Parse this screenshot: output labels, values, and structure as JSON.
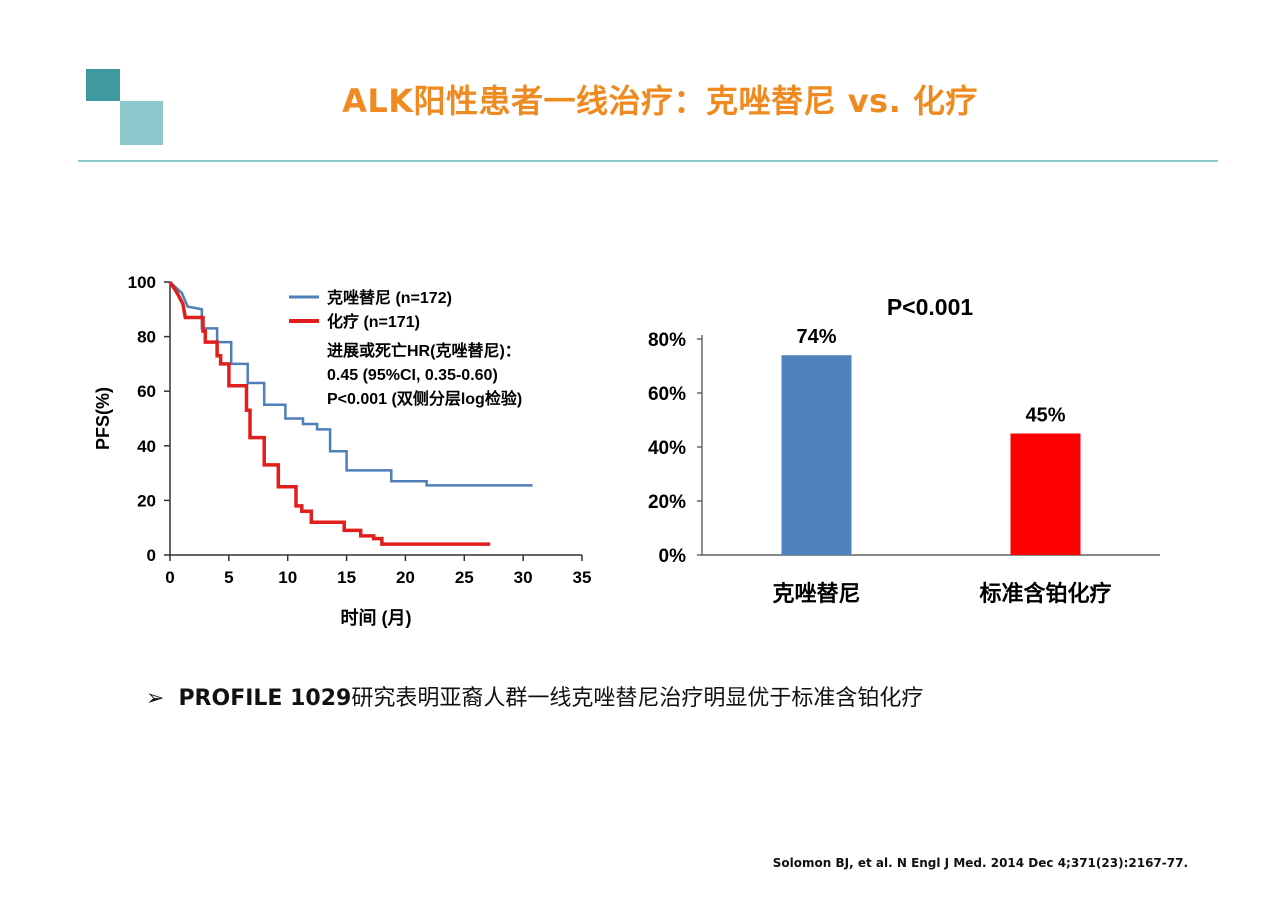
{
  "page": {
    "title": "ALK阳性患者一线治疗：克唑替尼 vs. 化疗",
    "bullet_mark": "➢",
    "bullet_lead": "PROFILE 1029",
    "bullet_rest": "研究表明亚裔人群一线克唑替尼治疗明显优于标准含铂化疗",
    "citation": "Solomon BJ, et al. N Engl J Med. 2014 Dec 4;371(23):2167-77."
  },
  "colors": {
    "title": "#ee8a1f",
    "accent_dark": "#3f9aa0",
    "accent_light": "#8dc8cc",
    "rule": "#8cc9cd",
    "crizotinib": "#4f7fb8",
    "chemo": "#e01e1e",
    "bar_blue": "#4f81bd",
    "bar_red": "#ff0000"
  },
  "chart_data": [
    {
      "type": "line",
      "xlabel": "时间 (月)",
      "ylabel": "PFS(%)",
      "xlim": [
        0,
        35
      ],
      "ylim": [
        0,
        100
      ],
      "xticks": [
        0,
        5,
        10,
        15,
        20,
        25,
        30,
        35
      ],
      "yticks": [
        0,
        20,
        40,
        60,
        80,
        100
      ],
      "grid": false,
      "legend_position": "top-right",
      "series": [
        {
          "name": "克唑替尼 (n=172)",
          "color": "#4f7fb8",
          "step": true,
          "points": [
            [
              0,
              100
            ],
            [
              0.5,
              98
            ],
            [
              1,
              96
            ],
            [
              1.5,
              91
            ],
            [
              2.7,
              90
            ],
            [
              2.7,
              83
            ],
            [
              4,
              83
            ],
            [
              4,
              78
            ],
            [
              5.2,
              78
            ],
            [
              5.2,
              70
            ],
            [
              6.6,
              70
            ],
            [
              6.6,
              63
            ],
            [
              8,
              63
            ],
            [
              8,
              55
            ],
            [
              9.8,
              55
            ],
            [
              9.8,
              50
            ],
            [
              11.3,
              50
            ],
            [
              11.3,
              48
            ],
            [
              12.5,
              48
            ],
            [
              12.5,
              46
            ],
            [
              13.6,
              46
            ],
            [
              13.6,
              38
            ],
            [
              15,
              38
            ],
            [
              15,
              31
            ],
            [
              18.8,
              31
            ],
            [
              18.8,
              27
            ],
            [
              21.8,
              27
            ],
            [
              21.8,
              25.5
            ],
            [
              30.8,
              25.5
            ]
          ]
        },
        {
          "name": "化疗 (n=171)",
          "color": "#e01e1e",
          "step": true,
          "points": [
            [
              0,
              100
            ],
            [
              0.6,
              96
            ],
            [
              1.1,
              92
            ],
            [
              1.3,
              87
            ],
            [
              2.8,
              87
            ],
            [
              2.8,
              82
            ],
            [
              3,
              82
            ],
            [
              3,
              78
            ],
            [
              4,
              78
            ],
            [
              4,
              73
            ],
            [
              4.3,
              73
            ],
            [
              4.3,
              70
            ],
            [
              5,
              70
            ],
            [
              5,
              62
            ],
            [
              6.5,
              62
            ],
            [
              6.5,
              53
            ],
            [
              6.8,
              53
            ],
            [
              6.8,
              43
            ],
            [
              8,
              43
            ],
            [
              8,
              33
            ],
            [
              9.2,
              33
            ],
            [
              9.2,
              25
            ],
            [
              10.7,
              25
            ],
            [
              10.7,
              18
            ],
            [
              11.2,
              18
            ],
            [
              11.2,
              16
            ],
            [
              12,
              16
            ],
            [
              12,
              12
            ],
            [
              14.8,
              12
            ],
            [
              14.8,
              9
            ],
            [
              16.2,
              9
            ],
            [
              16.2,
              7
            ],
            [
              17.3,
              7
            ],
            [
              17.3,
              6
            ],
            [
              18,
              6
            ],
            [
              18,
              4
            ],
            [
              27.2,
              4
            ]
          ]
        }
      ],
      "annotation_lines": [
        "进展或死亡HR(克唑替尼)：",
        "0.45 (95%CI, 0.35-0.60)",
        "P<0.001 (双侧分层log检验)"
      ]
    },
    {
      "type": "bar",
      "title": "P<0.001",
      "categories": [
        "克唑替尼",
        "标准含铂化疗"
      ],
      "values": [
        74,
        45
      ],
      "data_labels": [
        "74%",
        "45%"
      ],
      "colors": [
        "#4f81bd",
        "#ff0000"
      ],
      "ylim": [
        0,
        80
      ],
      "yticks": [
        0,
        20,
        40,
        60,
        80
      ],
      "ytick_labels": [
        "0%",
        "20%",
        "40%",
        "60%",
        "80%"
      ],
      "grid": false
    }
  ]
}
